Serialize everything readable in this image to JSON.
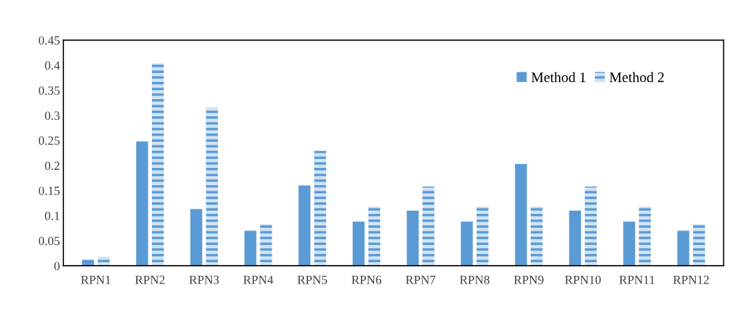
{
  "chart_data": {
    "type": "bar",
    "categories": [
      "RPN1",
      "RPN2",
      "RPN3",
      "RPN4",
      "RPN5",
      "RPN6",
      "RPN7",
      "RPN8",
      "RPN9",
      "RPN10",
      "RPN11",
      "RPN12"
    ],
    "series": [
      {
        "name": "Method 1",
        "color": "#5b9bd5",
        "values": [
          0.012,
          0.248,
          0.113,
          0.07,
          0.16,
          0.088,
          0.11,
          0.088,
          0.203,
          0.11,
          0.088,
          0.07
        ]
      },
      {
        "name": "Method 2",
        "color": "#5b9bd5",
        "values": [
          0.018,
          0.404,
          0.316,
          0.083,
          0.229,
          0.118,
          0.158,
          0.118,
          0.118,
          0.158,
          0.118,
          0.083
        ]
      }
    ],
    "ylim": [
      0,
      0.45
    ],
    "yticks": [
      0,
      0.05,
      0.1,
      0.15,
      0.2,
      0.25,
      0.3,
      0.35,
      0.4,
      0.45
    ],
    "grid": false,
    "legend": "top right"
  }
}
